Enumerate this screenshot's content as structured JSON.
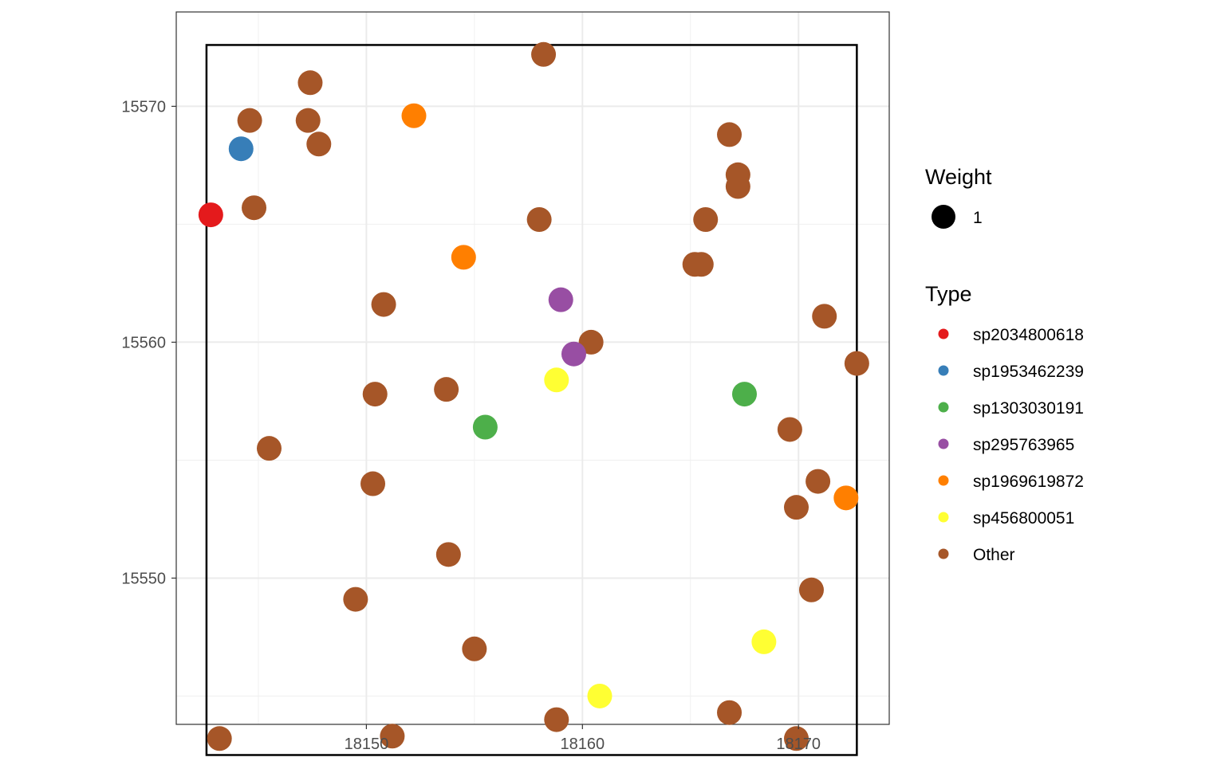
{
  "chart_data": {
    "type": "scatter",
    "title": "",
    "xlabel": "",
    "ylabel": "",
    "xlim": [
      18141.2,
      18174.2
    ],
    "ylim": [
      15543.8,
      15574.0
    ],
    "x_ticks": [
      18150,
      18160,
      18170
    ],
    "y_ticks": [
      15550,
      15560,
      15570
    ],
    "x_tick_labels": [
      "18150",
      "18160",
      "18170"
    ],
    "y_tick_labels": [
      "15550",
      "15560",
      "15570"
    ],
    "grid": true,
    "window": {
      "x": [
        18142.6,
        18172.7
      ],
      "y": [
        15542.5,
        15572.6
      ]
    },
    "legend": {
      "placement": "right",
      "size_title": "Weight",
      "size_entries": [
        "1"
      ],
      "color_title": "Type"
    },
    "series": [
      {
        "name": "sp2034800618",
        "color": "#E41A1C",
        "points": [
          [
            18142.8,
            15565.4
          ]
        ]
      },
      {
        "name": "sp1953462239",
        "color": "#377EB8",
        "points": [
          [
            18144.2,
            15568.2
          ]
        ]
      },
      {
        "name": "sp1303030191",
        "color": "#4DAF4A",
        "points": [
          [
            18155.5,
            15556.4
          ],
          [
            18167.5,
            15557.8
          ]
        ]
      },
      {
        "name": "sp295763965",
        "color": "#984EA3",
        "points": [
          [
            18159.0,
            15561.8
          ],
          [
            18159.6,
            15559.5
          ]
        ]
      },
      {
        "name": "sp1969619872",
        "color": "#FF7F00",
        "points": [
          [
            18152.2,
            15569.6
          ],
          [
            18154.5,
            15563.6
          ],
          [
            18172.2,
            15553.4
          ]
        ]
      },
      {
        "name": "sp456800051",
        "color": "#FFFF33",
        "points": [
          [
            18158.8,
            15558.4
          ],
          [
            18160.8,
            15545.0
          ],
          [
            18168.4,
            15547.3
          ]
        ]
      },
      {
        "name": "Other",
        "color": "#A65628",
        "points": [
          [
            18158.2,
            15572.2
          ],
          [
            18147.4,
            15571.0
          ],
          [
            18144.6,
            15569.4
          ],
          [
            18147.3,
            15569.4
          ],
          [
            18147.8,
            15568.4
          ],
          [
            18144.8,
            15565.7
          ],
          [
            18158.0,
            15565.2
          ],
          [
            18166.8,
            15568.8
          ],
          [
            18167.2,
            15567.1
          ],
          [
            18167.2,
            15566.6
          ],
          [
            18165.7,
            15565.2
          ],
          [
            18165.2,
            15563.3
          ],
          [
            18165.5,
            15563.3
          ],
          [
            18150.8,
            15561.6
          ],
          [
            18160.4,
            15560.0
          ],
          [
            18171.2,
            15561.1
          ],
          [
            18172.7,
            15559.1
          ],
          [
            18150.4,
            15557.8
          ],
          [
            18153.7,
            15558.0
          ],
          [
            18169.6,
            15556.3
          ],
          [
            18145.5,
            15555.5
          ],
          [
            18150.3,
            15554.0
          ],
          [
            18170.9,
            15554.1
          ],
          [
            18169.9,
            15553.0
          ],
          [
            18153.8,
            15551.0
          ],
          [
            18149.5,
            15549.1
          ],
          [
            18170.6,
            15549.5
          ],
          [
            18155.0,
            15547.0
          ],
          [
            18158.8,
            15544.0
          ],
          [
            18166.8,
            15544.3
          ],
          [
            18143.2,
            15543.2
          ],
          [
            18151.2,
            15543.3
          ],
          [
            18169.9,
            15543.2
          ]
        ]
      }
    ]
  }
}
